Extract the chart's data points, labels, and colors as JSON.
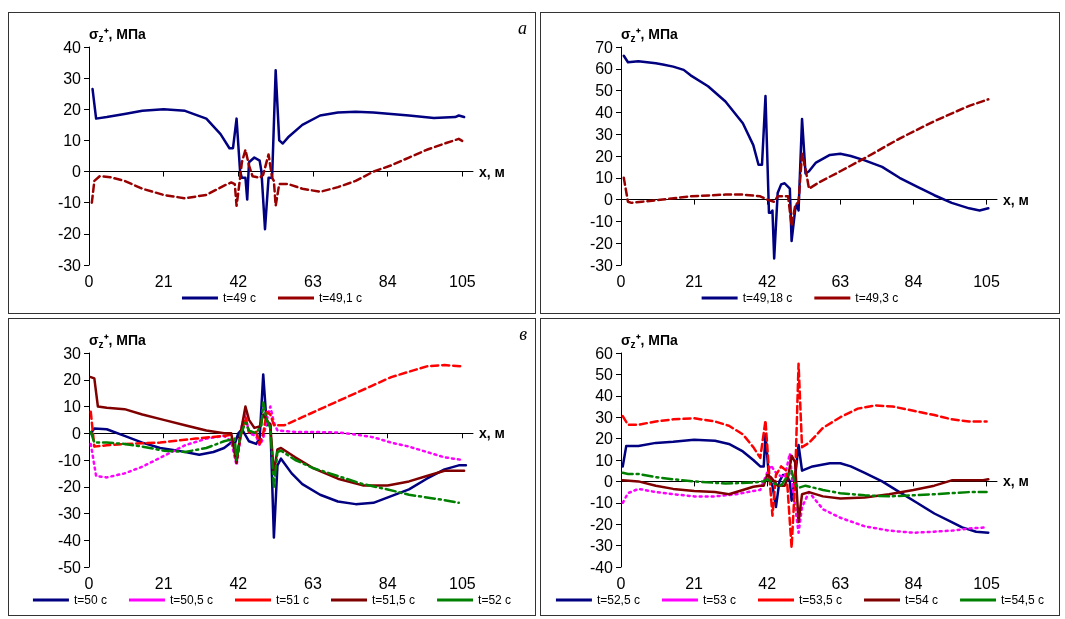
{
  "chart_data": [
    {
      "type": "line",
      "ylabel": "σ$_{z}$⁺, МПа",
      "xlabel": "x, м",
      "xlim": [
        0,
        108
      ],
      "xticks": [
        0,
        21,
        42,
        63,
        84,
        105
      ],
      "ylim": [
        -30,
        40
      ],
      "yticks": [
        -30,
        -20,
        -10,
        0,
        10,
        20,
        30,
        40
      ],
      "legend": "bottom",
      "marker": "none",
      "annotations": [
        "а"
      ],
      "series": [
        {
          "name": "t=49 с",
          "color": "#000080",
          "line_style": "solid",
          "x": [
            1,
            2,
            5,
            10,
            15,
            21,
            27,
            33,
            37,
            39.5,
            40.5,
            41.5,
            42.5,
            43,
            44,
            44.5,
            45,
            46.5,
            48,
            48.5,
            49.5,
            50.5,
            51.5,
            52.5,
            53.5,
            54.5,
            56,
            60,
            65,
            70,
            75,
            80,
            85,
            90,
            97,
            103,
            104,
            105.5
          ],
          "values": [
            26.5,
            17,
            17.5,
            18.5,
            19.5,
            20,
            19.5,
            17,
            12,
            7.5,
            7.5,
            17,
            0,
            -2,
            -2,
            -9,
            3,
            4.5,
            3.5,
            0,
            -18.5,
            -2,
            -2,
            32.5,
            10,
            9,
            11,
            15,
            18,
            19,
            19.2,
            19,
            18.5,
            18,
            17.2,
            17.5,
            18,
            17.5
          ]
        },
        {
          "name": "t=49,1 с",
          "color": "#990000",
          "line_style": "dashed",
          "x": [
            0.8,
            1.5,
            3,
            6,
            10,
            15,
            21,
            27,
            33,
            38,
            40,
            41,
            41.5,
            42.5,
            43,
            44,
            45,
            46,
            48,
            49,
            50.5,
            51.5,
            52,
            52.5,
            53.5,
            56,
            60,
            65,
            70,
            75,
            80,
            85,
            90,
            95,
            100,
            104,
            105.5
          ],
          "values": [
            -10,
            -3,
            -1.5,
            -1.8,
            -3,
            -5.5,
            -7.5,
            -8.6,
            -7.5,
            -4.5,
            -3.5,
            -4,
            -11,
            -2,
            3,
            7,
            2,
            -1.5,
            -2,
            -1,
            5.5,
            -2,
            -3,
            -11,
            -4,
            -4,
            -5.5,
            -6.5,
            -5,
            -3,
            0,
            2,
            4.5,
            7,
            9,
            10.5,
            9.5
          ]
        }
      ]
    },
    {
      "type": "line",
      "ylabel": "σ$_{z}$⁺, МПа",
      "xlabel": "x, м",
      "xlim": [
        0,
        108
      ],
      "xticks": [
        0,
        21,
        42,
        63,
        84,
        105
      ],
      "ylim": [
        -30,
        70
      ],
      "yticks": [
        -30,
        -20,
        -10,
        0,
        10,
        20,
        30,
        40,
        50,
        60,
        70
      ],
      "legend": "bottom",
      "marker": "none",
      "series": [
        {
          "name": "t=49,18 с",
          "color": "#000080",
          "line_style": "solid",
          "x": [
            0.8,
            2,
            5,
            10,
            12,
            15,
            18,
            20,
            25,
            30,
            35,
            38,
            39.5,
            40.5,
            41.5,
            42.5,
            43,
            43.5,
            44,
            45,
            46,
            47,
            48.5,
            49,
            50,
            50.5,
            51,
            52,
            53,
            54,
            56,
            60,
            63,
            66,
            70,
            75,
            80,
            85,
            90,
            95,
            100,
            103,
            105.5
          ],
          "values": [
            66,
            63,
            63.5,
            62.5,
            62,
            61,
            59.5,
            57,
            52,
            45,
            35,
            25,
            16,
            16,
            47.5,
            -6,
            -6,
            -5,
            -27,
            3,
            7,
            7.5,
            5,
            -19,
            -5,
            -2,
            -5,
            37,
            12,
            13,
            17,
            20.5,
            21,
            20,
            18,
            15,
            10,
            6,
            2,
            -1.5,
            -4,
            -5,
            -4
          ]
        },
        {
          "name": "t=49,3 с",
          "color": "#990000",
          "line_style": "dashed",
          "x": [
            0.8,
            2,
            3,
            6,
            12,
            20,
            30,
            35,
            40,
            42,
            44,
            45,
            48,
            49,
            50,
            51,
            52,
            53,
            54,
            57,
            63,
            70,
            80,
            90,
            100,
            105.5
          ],
          "values": [
            10,
            -1,
            -1.5,
            -1,
            0,
            1.5,
            2.3,
            2.3,
            1.5,
            0,
            -1,
            1.5,
            1.5,
            -12,
            -3,
            -1,
            21,
            14,
            5,
            8,
            13,
            19,
            28,
            36,
            43,
            46
          ]
        }
      ]
    },
    {
      "type": "line",
      "ylabel": "σ$_{z}$⁺, МПа",
      "xlabel": "x, м",
      "xlim": [
        0,
        108
      ],
      "xticks": [
        0,
        21,
        42,
        63,
        84,
        105
      ],
      "ylim": [
        -50,
        30
      ],
      "yticks": [
        -50,
        -40,
        -30,
        -20,
        -10,
        0,
        10,
        20,
        30
      ],
      "legend": "bottom",
      "marker": "none",
      "annotations": [
        "в"
      ],
      "series": [
        {
          "name": "t=50 с",
          "color": "#000080",
          "line_style": "solid",
          "x": [
            0.5,
            1.5,
            5,
            10,
            15,
            20,
            25,
            31,
            35,
            38,
            40,
            41,
            42,
            43,
            45,
            47,
            48,
            49,
            50,
            51,
            52,
            53,
            54,
            57,
            60,
            65,
            70,
            75,
            80,
            85,
            90,
            95,
            100,
            104,
            106
          ],
          "values": [
            0,
            1.8,
            1.5,
            -1,
            -3.5,
            -5.5,
            -6.5,
            -8,
            -7,
            -5.5,
            -3.5,
            -4,
            0,
            1.5,
            -3,
            -4,
            -2,
            22,
            3,
            3.5,
            -39,
            -12,
            -9.5,
            -15,
            -19,
            -23,
            -25.5,
            -26.5,
            -26,
            -23.5,
            -21,
            -17,
            -13.5,
            -12,
            -12
          ]
        },
        {
          "name": "t=50,5 с",
          "color": "#ff00ff",
          "line_style": "dotted",
          "x": [
            0.5,
            2,
            5,
            10,
            15,
            21,
            27,
            33,
            38,
            40,
            41.5,
            42.5,
            43,
            44,
            45,
            47,
            48,
            49,
            50,
            51,
            52,
            53,
            58,
            63,
            70,
            75,
            80,
            85,
            90,
            95,
            100,
            105
          ],
          "values": [
            -4,
            -16,
            -16.5,
            -15,
            -12.5,
            -8.5,
            -4.5,
            -2,
            -1,
            -3,
            -12,
            -3,
            3,
            7,
            0,
            -1,
            -4.5,
            -2,
            5,
            10,
            4,
            1,
            0.5,
            0.5,
            0.3,
            -0.5,
            -1.5,
            -3.5,
            -5,
            -7,
            -9,
            -10
          ]
        },
        {
          "name": "t=51 с",
          "color": "#ff0000",
          "line_style": "dashed",
          "x": [
            0.5,
            1.5,
            5,
            10,
            20,
            30,
            38,
            40,
            41.5,
            42.5,
            44,
            45,
            47,
            48,
            49,
            50,
            51,
            52,
            55,
            60,
            65,
            70,
            75,
            80,
            85,
            90,
            95,
            100,
            105
          ],
          "values": [
            8,
            -5,
            -4.5,
            -4,
            -3.5,
            -2,
            -1,
            -0.5,
            -10,
            -2,
            6,
            0.5,
            0.5,
            -4,
            0,
            8,
            7,
            3,
            3,
            6,
            9,
            12,
            15,
            18,
            21,
            23,
            25,
            25.5,
            25
          ]
        },
        {
          "name": "t=51,5 с",
          "color": "#800000",
          "line_style": "solid",
          "x": [
            0.5,
            1.5,
            2.5,
            5,
            10,
            15,
            21,
            27,
            33,
            38,
            40,
            41.5,
            42.5,
            44,
            45,
            46.5,
            48,
            49,
            50,
            51,
            52,
            53,
            54,
            58,
            63,
            70,
            77,
            84,
            90,
            95,
            100,
            105.5
          ],
          "values": [
            21,
            20.5,
            10,
            9.5,
            9,
            7,
            5,
            3,
            1,
            0,
            0,
            -11,
            -1,
            10,
            5,
            2,
            2.5,
            7,
            5,
            3,
            -15,
            -6,
            -5.5,
            -9,
            -13,
            -17,
            -19.5,
            -19.5,
            -18,
            -16,
            -14,
            -14
          ]
        },
        {
          "name": "t=52 с",
          "color": "#008000",
          "line_style": "dashdot",
          "x": [
            0.5,
            1.5,
            5,
            10,
            15,
            21,
            27,
            33,
            38,
            41,
            41.5,
            42.5,
            44,
            45,
            47,
            48.5,
            49,
            50,
            51,
            52,
            53,
            54,
            58,
            63,
            70,
            77,
            84,
            90,
            95,
            100,
            104
          ],
          "values": [
            0.5,
            -3.5,
            -3.5,
            -4,
            -5,
            -6.5,
            -7,
            -5.5,
            -3,
            -2,
            -10,
            -1,
            4,
            1,
            0,
            3,
            11.5,
            5,
            2,
            -20,
            -7,
            -6.5,
            -10,
            -13,
            -16,
            -19,
            -21,
            -23,
            -24,
            -25,
            -26
          ]
        }
      ]
    },
    {
      "type": "line",
      "ylabel": "σ$_{z}$⁺, МПа",
      "xlabel": "x, м",
      "xlim": [
        0,
        108
      ],
      "xticks": [
        0,
        21,
        42,
        63,
        84,
        105
      ],
      "ylim": [
        -40,
        60
      ],
      "yticks": [
        -40,
        -30,
        -20,
        -10,
        0,
        10,
        20,
        30,
        40,
        50,
        60
      ],
      "legend": "bottom",
      "marker": "none",
      "series": [
        {
          "name": "t=52,5 с",
          "color": "#000080",
          "line_style": "solid",
          "x": [
            0.5,
            1.5,
            5,
            10,
            15,
            21,
            27,
            31,
            35,
            38,
            40,
            41,
            41.5,
            42.5,
            43.5,
            44.5,
            45.5,
            46.5,
            47.5,
            48.5,
            49,
            50,
            51,
            52,
            55,
            60,
            63,
            66,
            70,
            75,
            80,
            85,
            90,
            95,
            98,
            102,
            105.5
          ],
          "values": [
            7,
            16.5,
            16.5,
            18,
            18.5,
            19.5,
            19,
            17.5,
            14,
            10,
            7,
            7,
            22,
            2,
            -2,
            -12,
            0,
            3,
            3,
            0,
            -9,
            2,
            17,
            5,
            7,
            8.5,
            8.5,
            7,
            4,
            0,
            -5,
            -10,
            -15,
            -19,
            -21.5,
            -23.5,
            -24
          ]
        },
        {
          "name": "t=53 с",
          "color": "#ff00ff",
          "line_style": "dotted",
          "x": [
            0.5,
            2,
            5,
            10,
            15,
            21,
            27,
            33,
            38,
            40,
            42,
            43,
            45,
            47,
            48.5,
            49.5,
            51,
            52,
            54,
            58,
            63,
            70,
            77,
            84,
            90,
            95,
            100,
            105
          ],
          "values": [
            -10,
            -5.5,
            -3.5,
            -5,
            -6,
            -7,
            -7,
            -6,
            -4.5,
            -4,
            4,
            7.5,
            3,
            2,
            13,
            -5,
            -24,
            -12,
            -5,
            -13,
            -17,
            -21,
            -23,
            -24,
            -23.5,
            -23,
            -22,
            -21.5
          ]
        },
        {
          "name": "t=53,5 с",
          "color": "#ff0000",
          "line_style": "dashed",
          "x": [
            0.5,
            2,
            5,
            10,
            15,
            21,
            27,
            31,
            35,
            38,
            40,
            41.5,
            42.5,
            43.5,
            44.5,
            46,
            47.5,
            49,
            50,
            51,
            52,
            54,
            58,
            63,
            68,
            73,
            78,
            84,
            90,
            95,
            100,
            105
          ],
          "values": [
            30.5,
            26.5,
            26.5,
            28,
            29,
            29.5,
            28,
            26,
            22,
            16,
            11,
            28.5,
            5,
            -16,
            3,
            7,
            5,
            -31,
            0,
            55,
            16,
            18,
            25,
            30,
            34,
            35.5,
            35,
            33,
            31,
            29,
            28,
            28
          ]
        },
        {
          "name": "t=54 с",
          "color": "#800000",
          "line_style": "solid",
          "x": [
            0.5,
            5,
            10,
            15,
            21,
            27,
            31,
            35,
            38,
            40,
            41,
            42,
            43,
            44,
            45,
            47,
            48,
            49,
            50,
            51,
            52,
            54,
            58,
            63,
            70,
            77,
            84,
            90,
            95,
            100,
            104,
            105.5
          ],
          "values": [
            0.5,
            0,
            -2,
            -3.5,
            -4.5,
            -5,
            -6,
            -4,
            -2.5,
            -2,
            -2,
            3,
            2,
            0,
            -2,
            -2,
            2,
            12,
            9,
            -19,
            -6,
            -5,
            -7,
            -8,
            -7.5,
            -6,
            -4,
            -2,
            0.5,
            0.5,
            0.5,
            1
          ]
        },
        {
          "name": "t=54,5 с",
          "color": "#008000",
          "line_style": "dashdot",
          "x": [
            0.5,
            2,
            5,
            10,
            15,
            21,
            30,
            38,
            41,
            42,
            44,
            46,
            48,
            49,
            50,
            51,
            53,
            58,
            63,
            70,
            77,
            84,
            90,
            95,
            100,
            105
          ],
          "values": [
            4,
            3.5,
            3.5,
            2,
            1,
            0,
            -1,
            -0.5,
            0,
            1,
            -1,
            -2,
            3,
            5,
            -1,
            -3,
            -2,
            -4,
            -5.5,
            -6.5,
            -7,
            -6.5,
            -6,
            -5.5,
            -5,
            -5
          ]
        }
      ]
    }
  ]
}
